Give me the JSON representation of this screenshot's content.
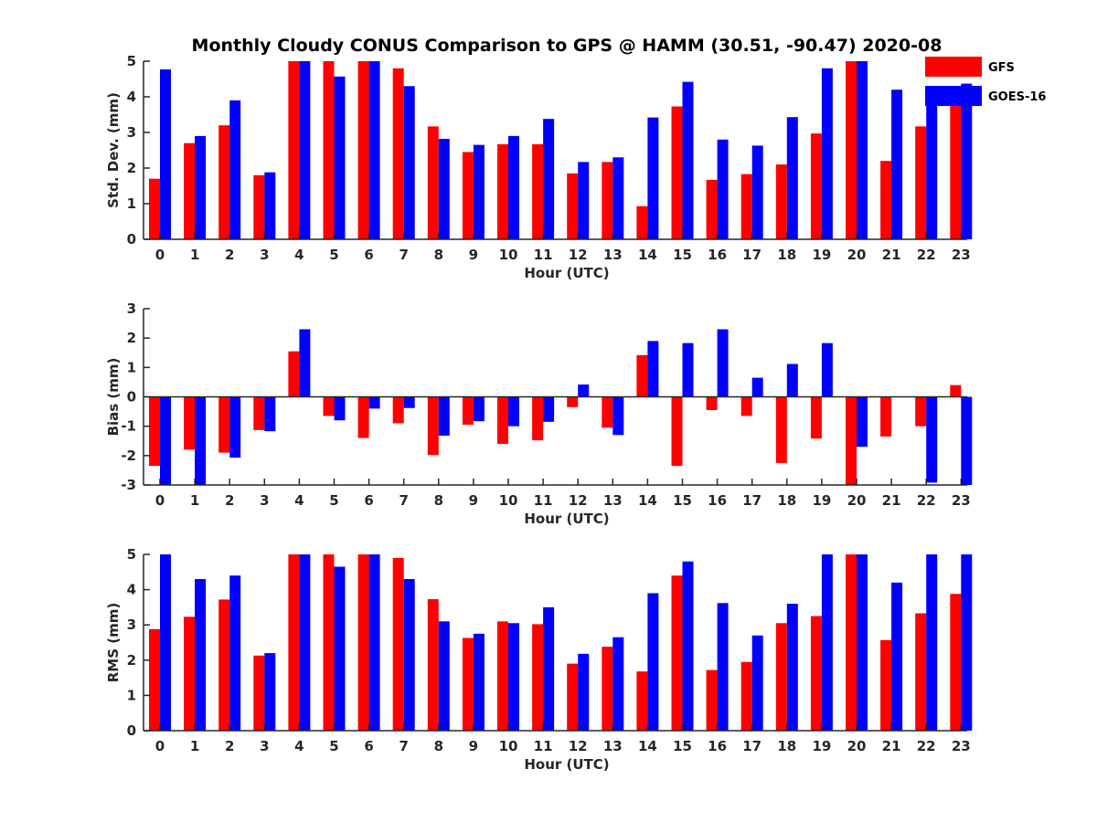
{
  "title": "Monthly Cloudy CONUS Comparison to GPS @ HAMM (30.51, -90.47) 2020-08",
  "colors": {
    "gfs": "#ff0000",
    "goes": "#0000ff"
  },
  "legend": {
    "placement": "top-right",
    "items": [
      "GFS",
      "GOES-16"
    ]
  },
  "chart_data": [
    {
      "type": "bar",
      "xlabel": "Hour (UTC)",
      "ylabel": "Std. Dev. (mm)",
      "ylim": [
        0,
        5
      ],
      "yticks": [
        0,
        1,
        2,
        3,
        4,
        5
      ],
      "categories": [
        "0",
        "1",
        "2",
        "3",
        "4",
        "5",
        "6",
        "7",
        "8",
        "9",
        "10",
        "11",
        "12",
        "13",
        "14",
        "15",
        "16",
        "17",
        "18",
        "19",
        "20",
        "21",
        "22",
        "23"
      ],
      "series": [
        {
          "name": "GFS",
          "values": [
            1.7,
            2.7,
            3.2,
            1.8,
            5.0,
            5.0,
            5.0,
            4.8,
            3.17,
            2.45,
            2.67,
            2.67,
            1.85,
            2.17,
            0.93,
            3.73,
            1.67,
            1.83,
            2.1,
            2.97,
            5.0,
            2.2,
            3.17,
            3.9
          ]
        },
        {
          "name": "GOES-16",
          "values": [
            4.77,
            2.9,
            3.9,
            1.88,
            5.0,
            4.57,
            5.0,
            4.3,
            2.82,
            2.65,
            2.9,
            3.38,
            2.17,
            2.3,
            3.42,
            4.42,
            2.8,
            2.63,
            3.43,
            4.8,
            5.0,
            4.2,
            4.27,
            4.37
          ]
        }
      ]
    },
    {
      "type": "bar",
      "xlabel": "Hour (UTC)",
      "ylabel": "Bias (mm)",
      "ylim": [
        -3,
        3
      ],
      "yticks": [
        -3,
        -2,
        -1,
        0,
        1,
        2,
        3
      ],
      "categories": [
        "0",
        "1",
        "2",
        "3",
        "4",
        "5",
        "6",
        "7",
        "8",
        "9",
        "10",
        "11",
        "12",
        "13",
        "14",
        "15",
        "16",
        "17",
        "18",
        "19",
        "20",
        "21",
        "22",
        "23"
      ],
      "series": [
        {
          "name": "GFS",
          "values": [
            -2.35,
            -1.8,
            -1.9,
            -1.13,
            1.55,
            -0.65,
            -1.4,
            -0.9,
            -1.98,
            -0.95,
            -1.6,
            -1.48,
            -0.35,
            -1.05,
            1.42,
            -2.35,
            -0.45,
            -0.65,
            -2.25,
            -1.42,
            -3.0,
            -1.35,
            -1.0,
            0.4
          ]
        },
        {
          "name": "GOES-16",
          "values": [
            -3.0,
            -3.0,
            -2.07,
            -1.17,
            2.3,
            -0.8,
            -0.4,
            -0.38,
            -1.32,
            -0.83,
            -1.0,
            -0.85,
            0.42,
            -1.3,
            1.9,
            1.83,
            2.3,
            0.65,
            1.12,
            1.83,
            -1.7,
            0.0,
            -2.92,
            -3.0
          ]
        }
      ]
    },
    {
      "type": "bar",
      "xlabel": "Hour (UTC)",
      "ylabel": "RMS (mm)",
      "ylim": [
        0,
        5
      ],
      "yticks": [
        0,
        1,
        2,
        3,
        4,
        5
      ],
      "categories": [
        "0",
        "1",
        "2",
        "3",
        "4",
        "5",
        "6",
        "7",
        "8",
        "9",
        "10",
        "11",
        "12",
        "13",
        "14",
        "15",
        "16",
        "17",
        "18",
        "19",
        "20",
        "21",
        "22",
        "23"
      ],
      "series": [
        {
          "name": "GFS",
          "values": [
            2.88,
            3.23,
            3.72,
            2.13,
            5.0,
            5.0,
            5.0,
            4.9,
            3.73,
            2.63,
            3.1,
            3.02,
            1.9,
            2.38,
            1.68,
            4.4,
            1.72,
            1.95,
            3.05,
            3.25,
            5.0,
            2.57,
            3.33,
            3.88
          ]
        },
        {
          "name": "GOES-16",
          "values": [
            5.0,
            4.3,
            4.4,
            2.2,
            5.0,
            4.65,
            5.0,
            4.3,
            3.1,
            2.75,
            3.05,
            3.5,
            2.18,
            2.65,
            3.9,
            4.8,
            3.62,
            2.7,
            3.6,
            5.0,
            5.0,
            4.2,
            5.0,
            5.0
          ]
        }
      ]
    }
  ]
}
